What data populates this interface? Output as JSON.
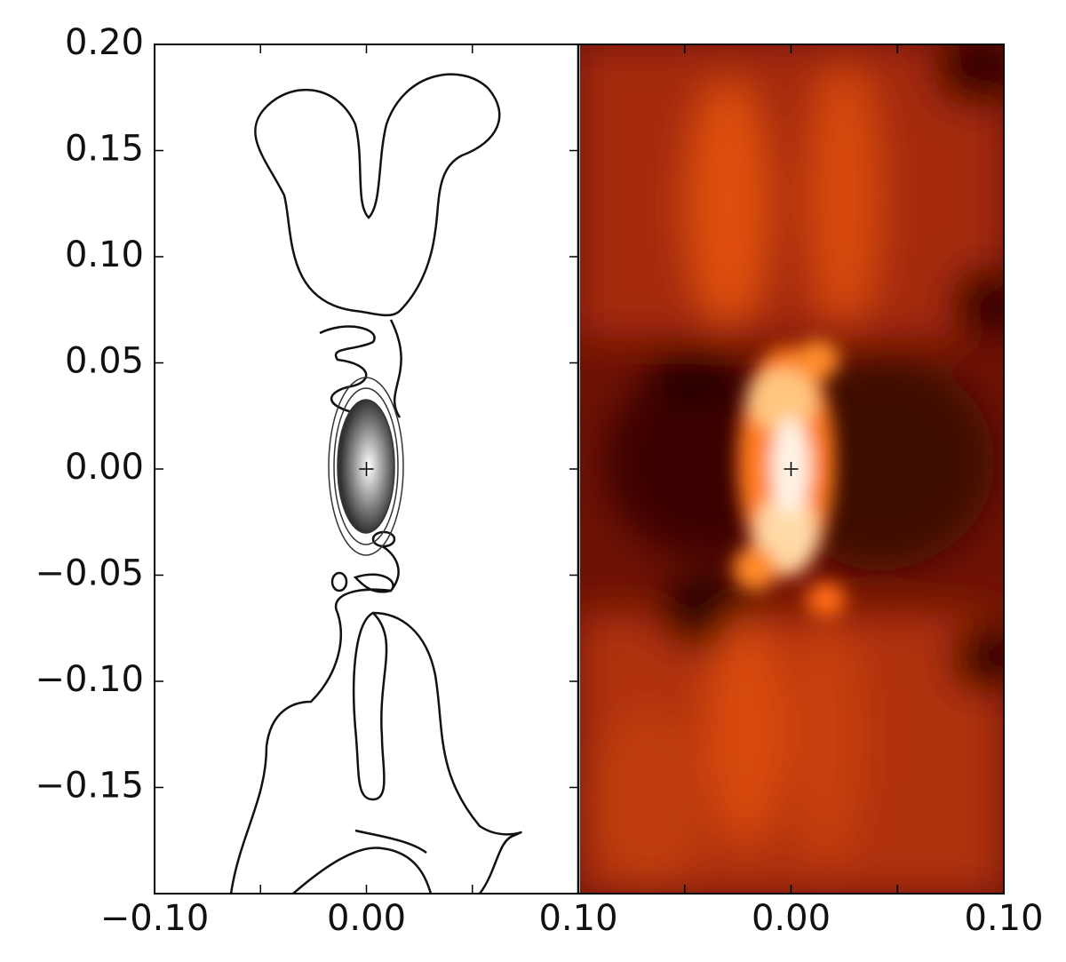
{
  "chart_data": [
    {
      "type": "contour",
      "xlim": [
        -0.1,
        0.1
      ],
      "ylim": [
        -0.2,
        0.2
      ],
      "xticks": [
        {
          "value": -0.1,
          "label": "−0.10"
        },
        {
          "value": 0,
          "label": "0.00"
        },
        {
          "value": 0.1,
          "label": "0.10"
        }
      ],
      "minor_xticks": [
        -0.05,
        0.05
      ],
      "yticks": [
        {
          "value": -0.15,
          "label": "−0.15"
        },
        {
          "value": -0.1,
          "label": "−0.10"
        },
        {
          "value": -0.05,
          "label": "−0.05"
        },
        {
          "value": 0,
          "label": "0.00"
        },
        {
          "value": 0.05,
          "label": "0.05"
        },
        {
          "value": 0.1,
          "label": "0.10"
        },
        {
          "value": 0.15,
          "label": "0.15"
        },
        {
          "value": 0.2,
          "label": "0.20"
        }
      ],
      "marker": {
        "x": 0,
        "y": 0
      }
    },
    {
      "type": "heatmap",
      "xlim": [
        -0.1,
        0.1
      ],
      "ylim": [
        -0.2,
        0.2
      ],
      "xticks": [
        {
          "value": 0,
          "label": "0.00"
        },
        {
          "value": 0.1,
          "label": "0.10"
        }
      ],
      "minor_xticks": [
        -0.05,
        0.05
      ],
      "marker": {
        "x": 0,
        "y": 0
      }
    }
  ]
}
